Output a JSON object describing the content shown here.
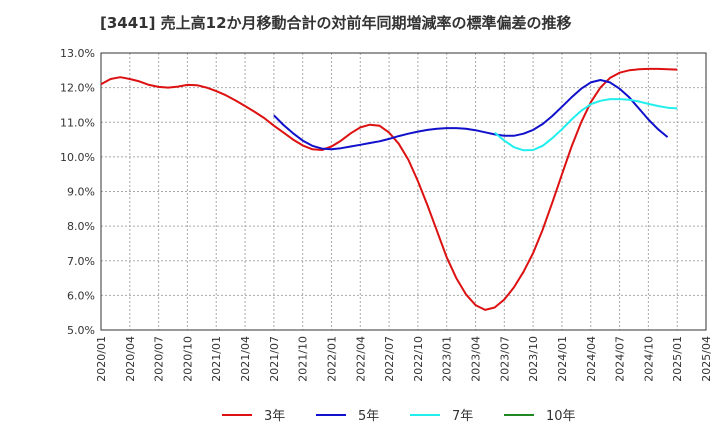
{
  "chart_data": {
    "type": "line",
    "title": "[3441]  売上高12か月移動合計の対前年同期増減率の標準偏差の推移",
    "xlabel": "",
    "ylabel": "",
    "ylim": [
      5.0,
      13.0
    ],
    "y_ticks": [
      "5.0%",
      "6.0%",
      "7.0%",
      "8.0%",
      "9.0%",
      "10.0%",
      "11.0%",
      "12.0%",
      "13.0%"
    ],
    "x_ticks": [
      "2020/01",
      "2020/04",
      "2020/07",
      "2020/10",
      "2021/01",
      "2021/04",
      "2021/07",
      "2021/10",
      "2022/01",
      "2022/04",
      "2022/07",
      "2022/10",
      "2023/01",
      "2023/04",
      "2023/07",
      "2023/10",
      "2024/01",
      "2024/04",
      "2024/07",
      "2024/10",
      "2025/01",
      "2025/04"
    ],
    "grid": true,
    "legend_position": "bottom",
    "series": [
      {
        "name": "3年",
        "color": "#dd1111",
        "points": [
          [
            "2020/01",
            12.1
          ],
          [
            "2020/02",
            12.25
          ],
          [
            "2020/03",
            12.3
          ],
          [
            "2020/04",
            12.25
          ],
          [
            "2020/05",
            12.18
          ],
          [
            "2020/06",
            12.08
          ],
          [
            "2020/07",
            12.02
          ],
          [
            "2020/08",
            12.0
          ],
          [
            "2020/09",
            12.03
          ],
          [
            "2020/10",
            12.08
          ],
          [
            "2020/11",
            12.07
          ],
          [
            "2020/12",
            12.0
          ],
          [
            "2021/01",
            11.9
          ],
          [
            "2021/02",
            11.78
          ],
          [
            "2021/03",
            11.63
          ],
          [
            "2021/04",
            11.47
          ],
          [
            "2021/05",
            11.3
          ],
          [
            "2021/06",
            11.12
          ],
          [
            "2021/07",
            10.9
          ],
          [
            "2021/08",
            10.7
          ],
          [
            "2021/09",
            10.5
          ],
          [
            "2021/10",
            10.33
          ],
          [
            "2021/11",
            10.22
          ],
          [
            "2021/12",
            10.2
          ],
          [
            "2022/01",
            10.3
          ],
          [
            "2022/02",
            10.47
          ],
          [
            "2022/03",
            10.68
          ],
          [
            "2022/04",
            10.85
          ],
          [
            "2022/05",
            10.93
          ],
          [
            "2022/06",
            10.9
          ],
          [
            "2022/07",
            10.7
          ],
          [
            "2022/08",
            10.38
          ],
          [
            "2022/09",
            9.92
          ],
          [
            "2022/10",
            9.3
          ],
          [
            "2022/11",
            8.6
          ],
          [
            "2022/12",
            7.85
          ],
          [
            "2023/01",
            7.1
          ],
          [
            "2023/02",
            6.5
          ],
          [
            "2023/03",
            6.03
          ],
          [
            "2023/04",
            5.72
          ],
          [
            "2023/05",
            5.58
          ],
          [
            "2023/06",
            5.65
          ],
          [
            "2023/07",
            5.88
          ],
          [
            "2023/08",
            6.23
          ],
          [
            "2023/09",
            6.68
          ],
          [
            "2023/10",
            7.22
          ],
          [
            "2023/11",
            7.9
          ],
          [
            "2023/12",
            8.68
          ],
          [
            "2024/01",
            9.5
          ],
          [
            "2024/02",
            10.3
          ],
          [
            "2024/03",
            11.0
          ],
          [
            "2024/04",
            11.58
          ],
          [
            "2024/05",
            12.0
          ],
          [
            "2024/06",
            12.28
          ],
          [
            "2024/07",
            12.43
          ],
          [
            "2024/08",
            12.5
          ],
          [
            "2024/09",
            12.53
          ],
          [
            "2024/10",
            12.54
          ],
          [
            "2024/11",
            12.54
          ],
          [
            "2024/12",
            12.53
          ],
          [
            "2025/01",
            12.52
          ]
        ]
      },
      {
        "name": "5年",
        "color": "#1111cc",
        "points": [
          [
            "2021/07",
            11.2
          ],
          [
            "2021/08",
            10.92
          ],
          [
            "2021/09",
            10.68
          ],
          [
            "2021/10",
            10.47
          ],
          [
            "2021/11",
            10.32
          ],
          [
            "2021/12",
            10.24
          ],
          [
            "2022/01",
            10.22
          ],
          [
            "2022/02",
            10.25
          ],
          [
            "2022/03",
            10.3
          ],
          [
            "2022/04",
            10.35
          ],
          [
            "2022/05",
            10.4
          ],
          [
            "2022/06",
            10.45
          ],
          [
            "2022/07",
            10.52
          ],
          [
            "2022/08",
            10.6
          ],
          [
            "2022/09",
            10.67
          ],
          [
            "2022/10",
            10.73
          ],
          [
            "2022/11",
            10.78
          ],
          [
            "2022/12",
            10.81
          ],
          [
            "2023/01",
            10.83
          ],
          [
            "2023/02",
            10.83
          ],
          [
            "2023/03",
            10.81
          ],
          [
            "2023/04",
            10.77
          ],
          [
            "2023/05",
            10.71
          ],
          [
            "2023/06",
            10.65
          ],
          [
            "2023/07",
            10.61
          ],
          [
            "2023/08",
            10.61
          ],
          [
            "2023/09",
            10.67
          ],
          [
            "2023/10",
            10.78
          ],
          [
            "2023/11",
            10.95
          ],
          [
            "2023/12",
            11.18
          ],
          [
            "2024/01",
            11.45
          ],
          [
            "2024/02",
            11.72
          ],
          [
            "2024/03",
            11.97
          ],
          [
            "2024/04",
            12.15
          ],
          [
            "2024/05",
            12.22
          ],
          [
            "2024/06",
            12.15
          ],
          [
            "2024/07",
            11.97
          ],
          [
            "2024/08",
            11.72
          ],
          [
            "2024/09",
            11.4
          ],
          [
            "2024/10",
            11.08
          ],
          [
            "2024/11",
            10.8
          ],
          [
            "2024/12",
            10.57
          ]
        ]
      },
      {
        "name": "7年",
        "color": "#22eeee",
        "points": [
          [
            "2023/06",
            10.7
          ],
          [
            "2023/07",
            10.47
          ],
          [
            "2023/08",
            10.28
          ],
          [
            "2023/09",
            10.19
          ],
          [
            "2023/10",
            10.2
          ],
          [
            "2023/11",
            10.32
          ],
          [
            "2023/12",
            10.54
          ],
          [
            "2024/01",
            10.8
          ],
          [
            "2024/02",
            11.08
          ],
          [
            "2024/03",
            11.33
          ],
          [
            "2024/04",
            11.52
          ],
          [
            "2024/05",
            11.62
          ],
          [
            "2024/06",
            11.67
          ],
          [
            "2024/07",
            11.67
          ],
          [
            "2024/08",
            11.65
          ],
          [
            "2024/09",
            11.6
          ],
          [
            "2024/10",
            11.53
          ],
          [
            "2024/11",
            11.47
          ],
          [
            "2024/12",
            11.42
          ],
          [
            "2025/01",
            11.4
          ]
        ]
      },
      {
        "name": "10年",
        "color": "#228822",
        "points": []
      }
    ]
  }
}
